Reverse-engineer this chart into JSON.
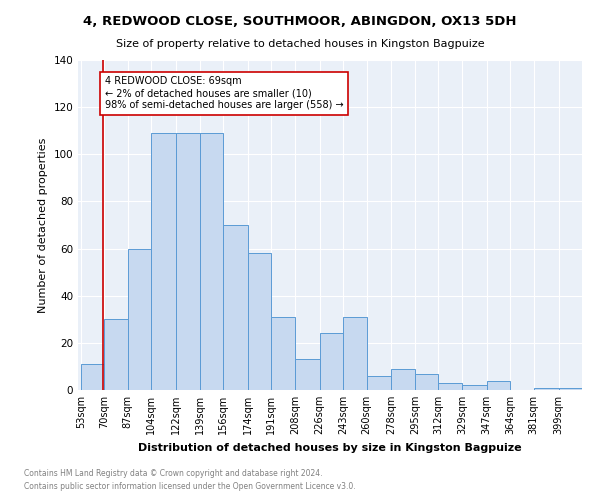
{
  "title": "4, REDWOOD CLOSE, SOUTHMOOR, ABINGDON, OX13 5DH",
  "subtitle": "Size of property relative to detached houses in Kingston Bagpuize",
  "xlabel": "Distribution of detached houses by size in Kingston Bagpuize",
  "ylabel": "Number of detached properties",
  "footnote1": "Contains HM Land Registry data © Crown copyright and database right 2024.",
  "footnote2": "Contains public sector information licensed under the Open Government Licence v3.0.",
  "bar_edges": [
    53,
    70,
    87,
    104,
    122,
    139,
    156,
    174,
    191,
    208,
    226,
    243,
    260,
    278,
    295,
    312,
    329,
    347,
    364,
    381,
    399
  ],
  "bar_heights": [
    11,
    30,
    60,
    109,
    109,
    109,
    70,
    58,
    31,
    13,
    24,
    31,
    6,
    9,
    7,
    3,
    2,
    4,
    0,
    1,
    1
  ],
  "bar_color": "#c7d9f0",
  "bar_edge_color": "#5b9bd5",
  "vline_x": 69,
  "vline_color": "#cc0000",
  "annotation_text": "4 REDWOOD CLOSE: 69sqm\n← 2% of detached houses are smaller (10)\n98% of semi-detached houses are larger (558) →",
  "annotation_box_color": "white",
  "annotation_box_edge_color": "#cc0000",
  "tick_labels": [
    "53sqm",
    "70sqm",
    "87sqm",
    "104sqm",
    "122sqm",
    "139sqm",
    "156sqm",
    "174sqm",
    "191sqm",
    "208sqm",
    "226sqm",
    "243sqm",
    "260sqm",
    "278sqm",
    "295sqm",
    "312sqm",
    "329sqm",
    "347sqm",
    "364sqm",
    "381sqm",
    "399sqm"
  ],
  "ylim": [
    0,
    140
  ],
  "yticks": [
    0,
    20,
    40,
    60,
    80,
    100,
    120,
    140
  ],
  "bg_color": "#eaf0f8",
  "grid_color": "white",
  "title_fontsize": 9.5,
  "subtitle_fontsize": 8,
  "ylabel_fontsize": 8,
  "xlabel_fontsize": 8,
  "tick_fontsize": 7,
  "footnote_fontsize": 5.5
}
